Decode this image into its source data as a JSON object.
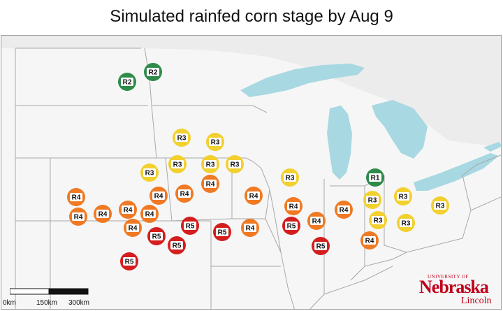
{
  "title": "Simulated rainfed corn stage by Aug 9",
  "colors": {
    "R1": "#2e8b4a",
    "R2": "#2e8b4a",
    "R3": "#f2d02e",
    "R4": "#f07a24",
    "R5": "#d41e1e",
    "lake": "#a8d8e2",
    "land": "#f6f6f6",
    "state_line": "#a8a8a8",
    "outside_land": "#e8e8e8"
  },
  "legend_stages": [
    "R1",
    "R2",
    "R3",
    "R4",
    "R5"
  ],
  "sites": [
    {
      "stage": "R2"
    },
    {
      "stage": "R2"
    },
    {
      "stage": "R3"
    },
    {
      "stage": "R3"
    },
    {
      "stage": "R3"
    },
    {
      "stage": "R3"
    },
    {
      "stage": "R3"
    },
    {
      "stage": "R3"
    },
    {
      "stage": "R3"
    },
    {
      "stage": "R1"
    },
    {
      "stage": "R3"
    },
    {
      "stage": "R3"
    },
    {
      "stage": "R3"
    },
    {
      "stage": "R3"
    },
    {
      "stage": "R3"
    },
    {
      "stage": "R4"
    },
    {
      "stage": "R4"
    },
    {
      "stage": "R4"
    },
    {
      "stage": "R4"
    },
    {
      "stage": "R4"
    },
    {
      "stage": "R4"
    },
    {
      "stage": "R4"
    },
    {
      "stage": "R4"
    },
    {
      "stage": "R4"
    },
    {
      "stage": "R4"
    },
    {
      "stage": "R4"
    },
    {
      "stage": "R4"
    },
    {
      "stage": "R4"
    },
    {
      "stage": "R4"
    },
    {
      "stage": "R4"
    },
    {
      "stage": "R5"
    },
    {
      "stage": "R5"
    },
    {
      "stage": "R5"
    },
    {
      "stage": "R5"
    },
    {
      "stage": "R5"
    },
    {
      "stage": "R5"
    },
    {
      "stage": "R5"
    }
  ],
  "scale_bar": {
    "labels": [
      "0km",
      "150km",
      "300km"
    ]
  },
  "logo": {
    "university": "UNIVERSITY OF",
    "name": "Nebraska",
    "campus": "Lincoln"
  }
}
